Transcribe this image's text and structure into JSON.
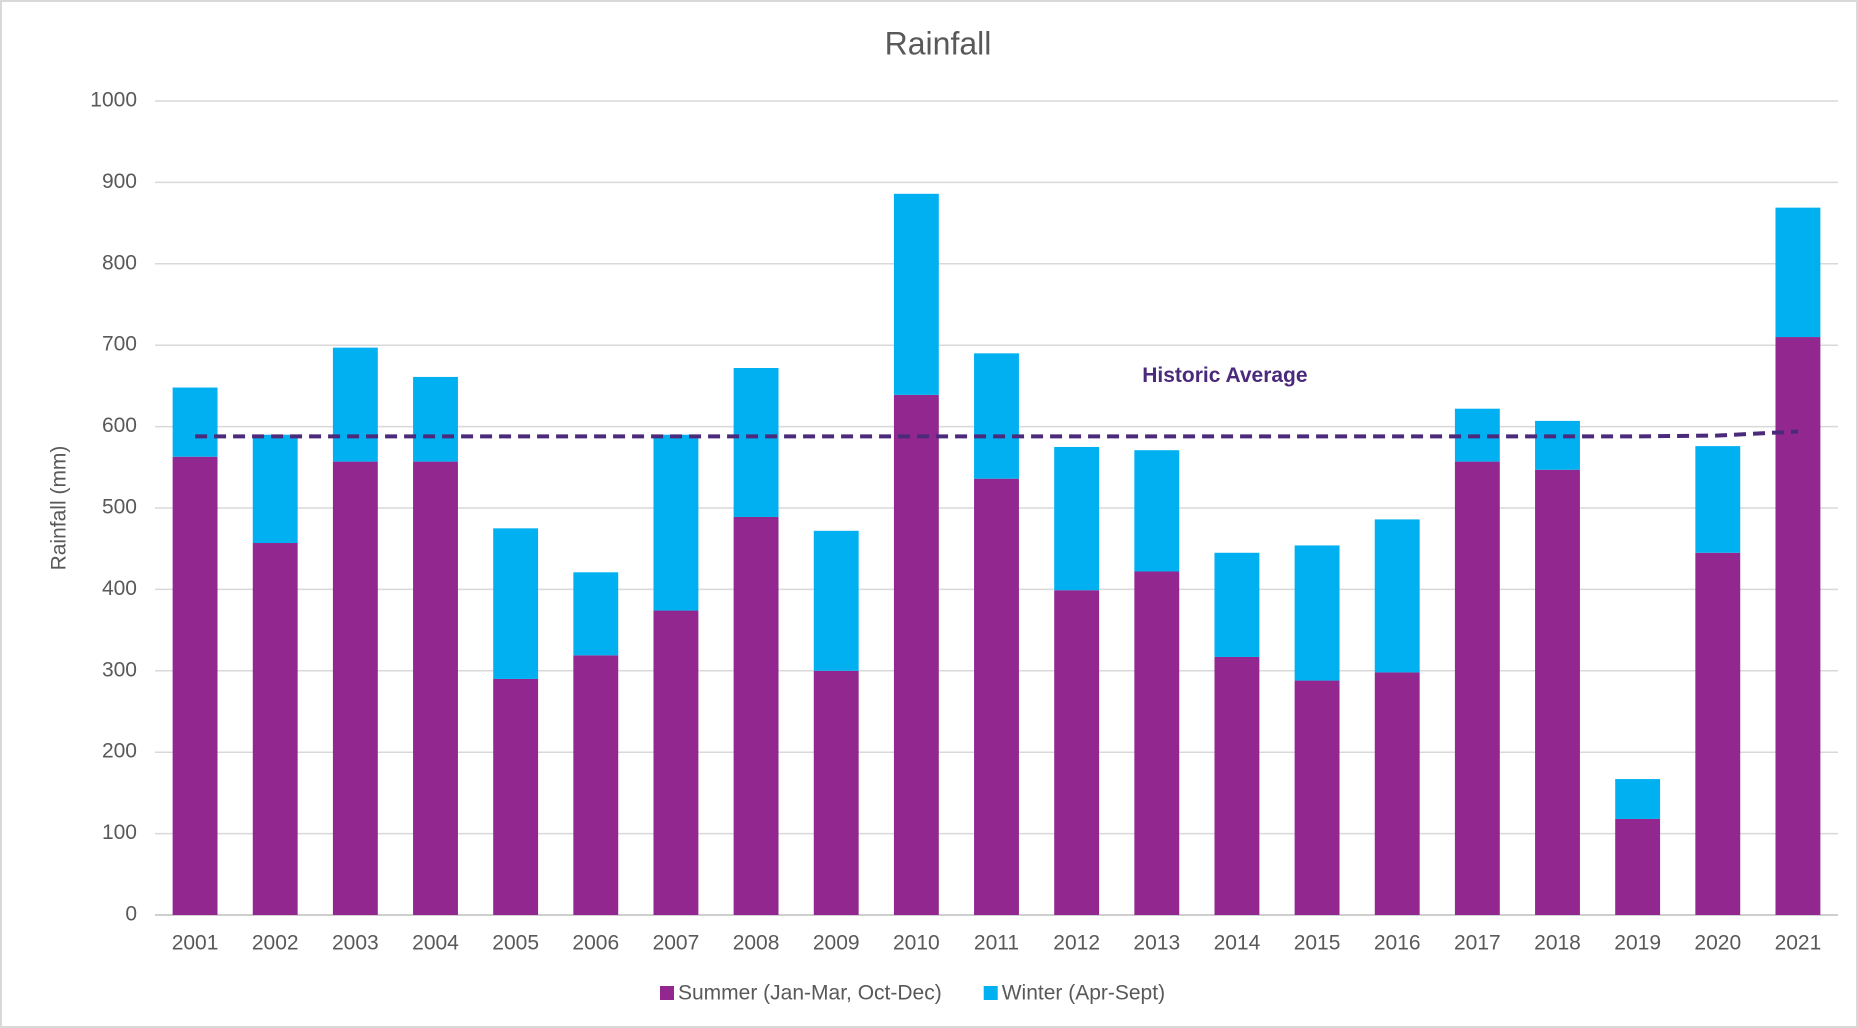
{
  "chart_data": {
    "type": "stacked-bar",
    "title": "Rainfall",
    "y_label": "Rainfall (mm)",
    "categories": [
      "2001",
      "2002",
      "2003",
      "2004",
      "2005",
      "2006",
      "2007",
      "2008",
      "2009",
      "2010",
      "2011",
      "2012",
      "2013",
      "2014",
      "2015",
      "2016",
      "2017",
      "2018",
      "2019",
      "2020",
      "2021"
    ],
    "series": [
      {
        "name": "Summer (Jan-Mar, Oct-Dec)",
        "color": "#92278f",
        "values": [
          563,
          457,
          557,
          557,
          290,
          319,
          374,
          489,
          300,
          639,
          536,
          399,
          422,
          317,
          288,
          298,
          557,
          547,
          118,
          445,
          710
        ]
      },
      {
        "name": "Winter (Apr-Sept)",
        "color": "#00b0f0",
        "values": [
          85,
          133,
          140,
          104,
          185,
          102,
          216,
          183,
          172,
          247,
          154,
          176,
          149,
          128,
          166,
          188,
          65,
          60,
          49,
          131,
          159
        ]
      },
      {
        "name": "Historic Average",
        "type": "line",
        "color": "#4b2a7b",
        "dashed": true,
        "values": [
          588,
          588,
          588,
          588,
          588,
          588,
          588,
          588,
          588,
          588,
          588,
          588,
          588,
          588,
          588,
          588,
          588,
          588,
          588,
          589,
          594
        ]
      }
    ],
    "ylim": [
      0,
      1000
    ],
    "yticks": [
      0,
      100,
      200,
      300,
      400,
      500,
      600,
      700,
      800,
      900,
      1000
    ],
    "grid": true,
    "legend": "bottom"
  }
}
